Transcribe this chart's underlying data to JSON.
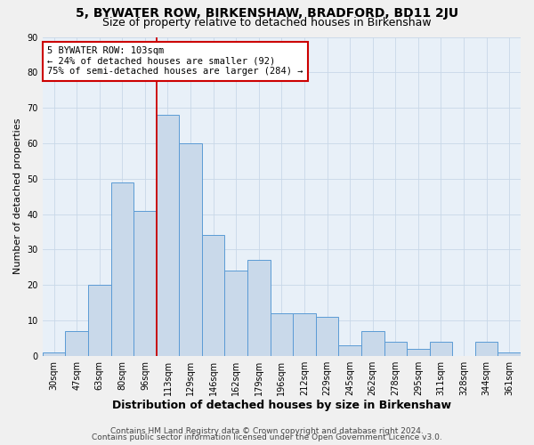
{
  "title": "5, BYWATER ROW, BIRKENSHAW, BRADFORD, BD11 2JU",
  "subtitle": "Size of property relative to detached houses in Birkenshaw",
  "xlabel": "Distribution of detached houses by size in Birkenshaw",
  "ylabel": "Number of detached properties",
  "categories": [
    "30sqm",
    "47sqm",
    "63sqm",
    "80sqm",
    "96sqm",
    "113sqm",
    "129sqm",
    "146sqm",
    "162sqm",
    "179sqm",
    "196sqm",
    "212sqm",
    "229sqm",
    "245sqm",
    "262sqm",
    "278sqm",
    "295sqm",
    "311sqm",
    "328sqm",
    "344sqm",
    "361sqm"
  ],
  "values": [
    1,
    7,
    20,
    49,
    41,
    68,
    60,
    34,
    24,
    27,
    12,
    12,
    11,
    3,
    7,
    4,
    2,
    4,
    0,
    4,
    1
  ],
  "bar_color": "#c9d9ea",
  "bar_edge_color": "#5b9bd5",
  "annotation_title": "5 BYWATER ROW: 103sqm",
  "annotation_line1": "← 24% of detached houses are smaller (92)",
  "annotation_line2": "75% of semi-detached houses are larger (284) →",
  "annotation_box_color": "#ffffff",
  "annotation_box_edge": "#cc0000",
  "vline_color": "#cc0000",
  "ylim": [
    0,
    90
  ],
  "yticks": [
    0,
    10,
    20,
    30,
    40,
    50,
    60,
    70,
    80,
    90
  ],
  "grid_color": "#c8d8e8",
  "footer1": "Contains HM Land Registry data © Crown copyright and database right 2024.",
  "footer2": "Contains public sector information licensed under the Open Government Licence v3.0.",
  "title_fontsize": 10,
  "subtitle_fontsize": 9,
  "xlabel_fontsize": 9,
  "ylabel_fontsize": 8,
  "tick_fontsize": 7,
  "annotation_fontsize": 7.5,
  "footer_fontsize": 6.5,
  "bg_color": "#e8f0f8",
  "fig_bg_color": "#f0f0f0"
}
